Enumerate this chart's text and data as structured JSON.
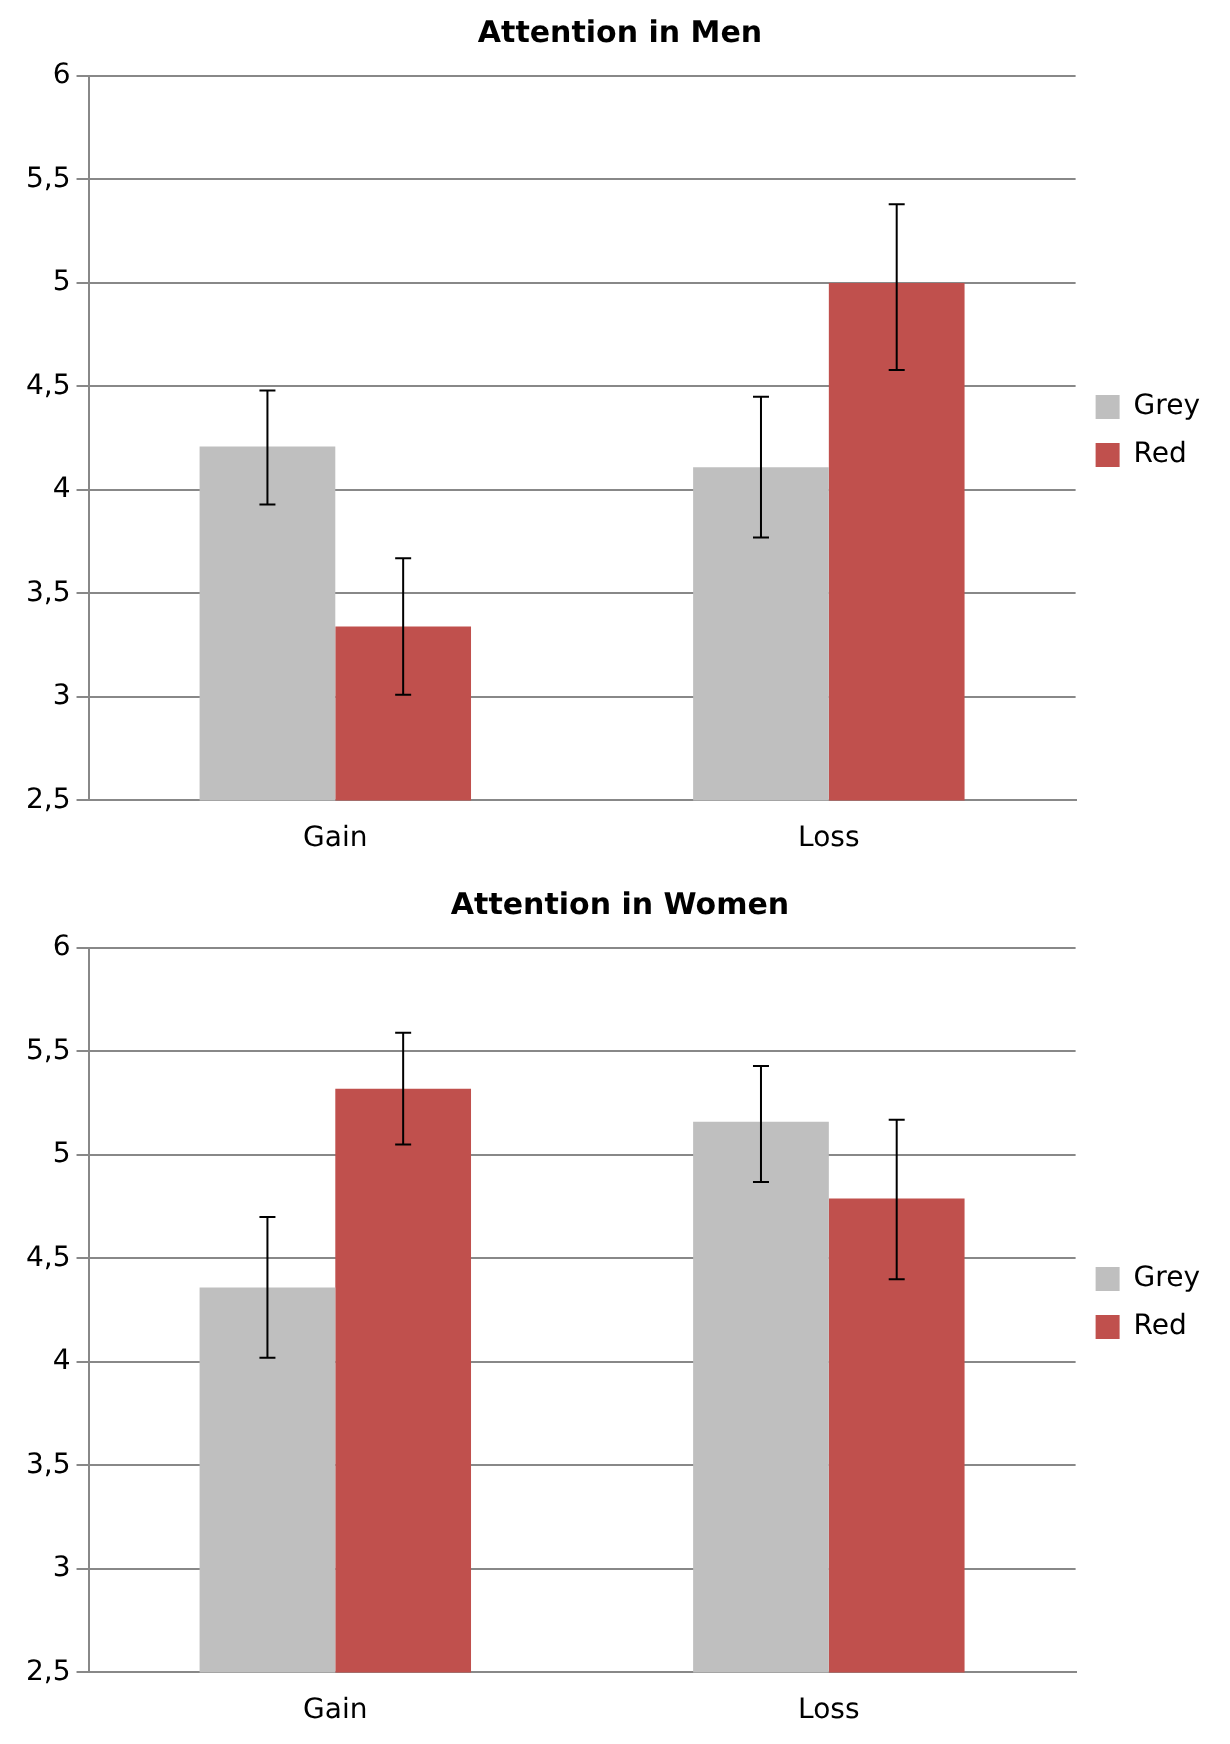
{
  "chart_data": [
    {
      "type": "bar",
      "title": "Attention in Men",
      "categories": [
        "Gain",
        "Loss"
      ],
      "series": [
        {
          "name": "Grey",
          "color": "#bfbfbf",
          "values": [
            4.21,
            4.11
          ],
          "errors": [
            [
              3.93,
              4.48
            ],
            [
              3.77,
              4.45
            ]
          ]
        },
        {
          "name": "Red",
          "color": "#c0504d",
          "values": [
            3.34,
            5.0
          ],
          "errors": [
            [
              3.01,
              3.67
            ],
            [
              4.58,
              5.38
            ]
          ]
        }
      ],
      "ylim": [
        2.5,
        6
      ],
      "yticks": [
        {
          "value": 2.5,
          "label": "2,5"
        },
        3,
        {
          "value": 3.5,
          "label": "3,5"
        },
        4,
        {
          "value": 4.5,
          "label": "4,5"
        },
        5,
        {
          "value": 5.5,
          "label": "5,5"
        },
        6
      ],
      "grid": "y",
      "legend": "right"
    },
    {
      "type": "bar",
      "title": "Attention in Women",
      "categories": [
        "Gain",
        "Loss"
      ],
      "series": [
        {
          "name": "Grey",
          "color": "#bfbfbf",
          "values": [
            4.36,
            5.16
          ],
          "errors": [
            [
              4.02,
              4.7
            ],
            [
              4.87,
              5.43
            ]
          ]
        },
        {
          "name": "Red",
          "color": "#c0504d",
          "values": [
            5.32,
            4.79
          ],
          "errors": [
            [
              5.05,
              5.59
            ],
            [
              4.4,
              5.17
            ]
          ]
        }
      ],
      "ylim": [
        2.5,
        6
      ],
      "yticks": [
        {
          "value": 2.5,
          "label": "2,5"
        },
        3,
        {
          "value": 3.5,
          "label": "3,5"
        },
        4,
        {
          "value": 4.5,
          "label": "4,5"
        },
        5,
        {
          "value": 5.5,
          "label": "5,5"
        },
        6
      ],
      "grid": "y",
      "legend": "right"
    }
  ]
}
